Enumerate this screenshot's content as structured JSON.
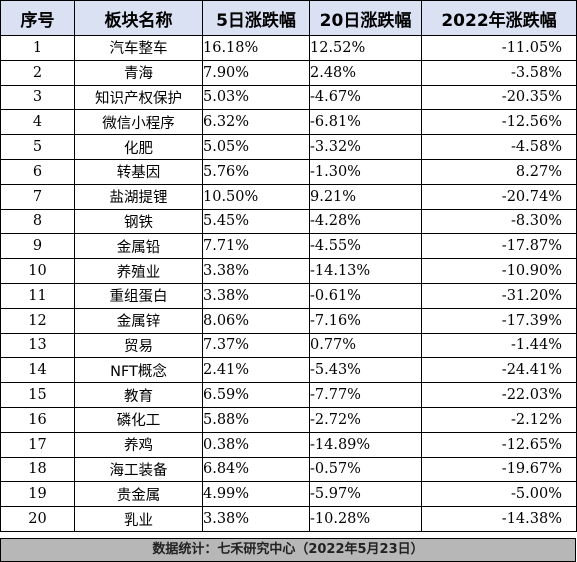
{
  "headers": [
    "序号",
    "板块名称",
    "5日涨跌幅",
    "20日涨跌幅",
    "2022年涨跌幅"
  ],
  "rows": [
    {
      "rank": "1",
      "name": "汽车整车",
      "d5": "16.18%",
      "d20": "12.52%",
      "ytd": "-11.05%"
    },
    {
      "rank": "2",
      "name": "青海",
      "d5": "7.90%",
      "d20": "2.48%",
      "ytd": "-3.58%"
    },
    {
      "rank": "3",
      "name": "知识产权保护",
      "d5": "5.03%",
      "d20": "-4.67%",
      "ytd": "-20.35%"
    },
    {
      "rank": "4",
      "name": "微信小程序",
      "d5": "6.32%",
      "d20": "-6.81%",
      "ytd": "-12.56%"
    },
    {
      "rank": "5",
      "name": "化肥",
      "d5": "5.05%",
      "d20": "-3.32%",
      "ytd": "-4.58%"
    },
    {
      "rank": "6",
      "name": "转基因",
      "d5": "5.76%",
      "d20": "-1.30%",
      "ytd": "8.27%"
    },
    {
      "rank": "7",
      "name": "盐湖提锂",
      "d5": "10.50%",
      "d20": "9.21%",
      "ytd": "-20.74%"
    },
    {
      "rank": "8",
      "name": "钢铁",
      "d5": "5.45%",
      "d20": "-4.28%",
      "ytd": "-8.30%"
    },
    {
      "rank": "9",
      "name": "金属铅",
      "d5": "7.71%",
      "d20": "-4.55%",
      "ytd": "-17.87%"
    },
    {
      "rank": "10",
      "name": "养殖业",
      "d5": "3.38%",
      "d20": "-14.13%",
      "ytd": "-10.90%"
    },
    {
      "rank": "11",
      "name": "重组蛋白",
      "d5": "3.38%",
      "d20": "-0.61%",
      "ytd": "-31.20%"
    },
    {
      "rank": "12",
      "name": "金属锌",
      "d5": "8.06%",
      "d20": "-7.16%",
      "ytd": "-17.39%"
    },
    {
      "rank": "13",
      "name": "贸易",
      "d5": "7.37%",
      "d20": "0.77%",
      "ytd": "-1.44%"
    },
    {
      "rank": "14",
      "name": "NFT概念",
      "d5": "2.41%",
      "d20": "-5.43%",
      "ytd": "-24.41%"
    },
    {
      "rank": "15",
      "name": "教育",
      "d5": "6.59%",
      "d20": "-7.77%",
      "ytd": "-22.03%"
    },
    {
      "rank": "16",
      "name": "磷化工",
      "d5": "5.88%",
      "d20": "-2.72%",
      "ytd": "-2.12%"
    },
    {
      "rank": "17",
      "name": "养鸡",
      "d5": "0.38%",
      "d20": "-14.89%",
      "ytd": "-12.65%"
    },
    {
      "rank": "18",
      "name": "海工装备",
      "d5": "6.84%",
      "d20": "-0.57%",
      "ytd": "-19.67%"
    },
    {
      "rank": "19",
      "name": "贵金属",
      "d5": "4.99%",
      "d20": "-5.97%",
      "ytd": "-5.00%"
    },
    {
      "rank": "20",
      "name": "乳业",
      "d5": "3.38%",
      "d20": "-10.28%",
      "ytd": "-14.38%"
    }
  ],
  "footer": "数据统计：七禾研究中心（2022年5月23日）"
}
